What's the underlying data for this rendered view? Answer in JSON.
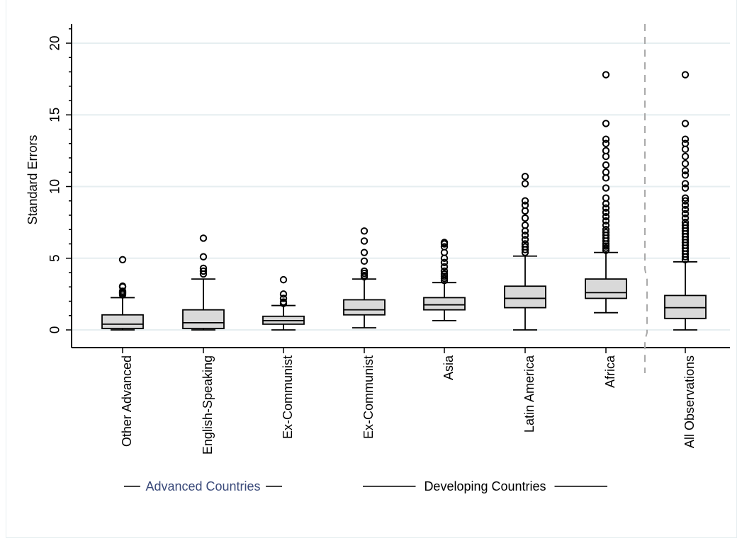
{
  "chart_data": {
    "type": "box",
    "ylabel": "Standard Errors",
    "ylim": [
      -1.2,
      21.5
    ],
    "yticks": [
      0,
      5,
      10,
      15,
      20
    ],
    "grid": true,
    "categories": [
      "Other Advanced",
      "English-Speaking",
      "Ex-Communist",
      "Ex-Communist",
      "Asia",
      "Latin America",
      "Africa",
      "All Observations"
    ],
    "groups": [
      {
        "label": "Advanced Countries",
        "color": "#3a4a7a",
        "span": [
          0,
          2
        ]
      },
      {
        "label": "Developing Countries",
        "color": "#000000",
        "span": [
          3,
          6
        ]
      }
    ],
    "separator_after_index": 6,
    "boxes": [
      {
        "min": 0.0,
        "q1": 0.1,
        "median": 0.4,
        "q3": 1.05,
        "max": 2.25,
        "outliers": [
          2.45,
          2.55,
          2.6,
          2.7,
          3.0,
          3.05,
          4.9
        ]
      },
      {
        "min": 0.0,
        "q1": 0.1,
        "median": 0.5,
        "q3": 1.4,
        "max": 3.55,
        "outliers": [
          3.9,
          4.1,
          4.3,
          5.1,
          6.4
        ]
      },
      {
        "min": 0.0,
        "q1": 0.4,
        "median": 0.65,
        "q3": 0.95,
        "max": 1.7,
        "outliers": [
          1.85,
          1.95,
          2.2,
          2.5,
          3.5
        ]
      },
      {
        "min": 0.15,
        "q1": 1.05,
        "median": 1.4,
        "q3": 2.1,
        "max": 3.55,
        "outliers": [
          3.7,
          3.8,
          3.95,
          4.1,
          4.8,
          5.4,
          6.2,
          6.9
        ]
      },
      {
        "min": 0.65,
        "q1": 1.4,
        "median": 1.75,
        "q3": 2.25,
        "max": 3.3,
        "outliers": [
          3.45,
          3.6,
          3.75,
          3.9,
          4.1,
          4.4,
          4.7,
          5.0,
          5.4,
          5.8,
          6.0,
          6.1
        ]
      },
      {
        "min": 0.0,
        "q1": 1.55,
        "median": 2.2,
        "q3": 3.05,
        "max": 5.15,
        "outliers": [
          5.4,
          5.6,
          5.8,
          6.0,
          6.3,
          6.6,
          6.9,
          7.3,
          7.8,
          8.3,
          8.7,
          9.0,
          10.2,
          10.7
        ]
      },
      {
        "min": 1.2,
        "q1": 2.2,
        "median": 2.6,
        "q3": 3.55,
        "max": 5.4,
        "outliers": [
          5.55,
          5.7,
          5.85,
          6.0,
          6.2,
          6.4,
          6.6,
          6.8,
          7.0,
          7.3,
          7.6,
          7.9,
          8.2,
          8.5,
          8.8,
          9.2,
          9.9,
          10.6,
          11.0,
          11.5,
          12.1,
          12.5,
          13.0,
          13.3,
          14.4,
          17.8
        ]
      },
      {
        "min": 0.0,
        "q1": 0.8,
        "median": 1.55,
        "q3": 2.4,
        "max": 4.75,
        "outliers": [
          4.9,
          5.1,
          5.3,
          5.5,
          5.7,
          5.9,
          6.1,
          6.3,
          6.5,
          6.7,
          6.9,
          7.1,
          7.3,
          7.5,
          7.8,
          8.1,
          8.4,
          8.7,
          9.0,
          9.2,
          9.9,
          10.2,
          10.8,
          11.1,
          11.6,
          12.1,
          12.6,
          13.0,
          13.3,
          14.4,
          17.8
        ]
      }
    ],
    "box_fill": "#d9d9d9",
    "grid_color": "#e6eef0",
    "separator_color": "#aaaaaa"
  }
}
